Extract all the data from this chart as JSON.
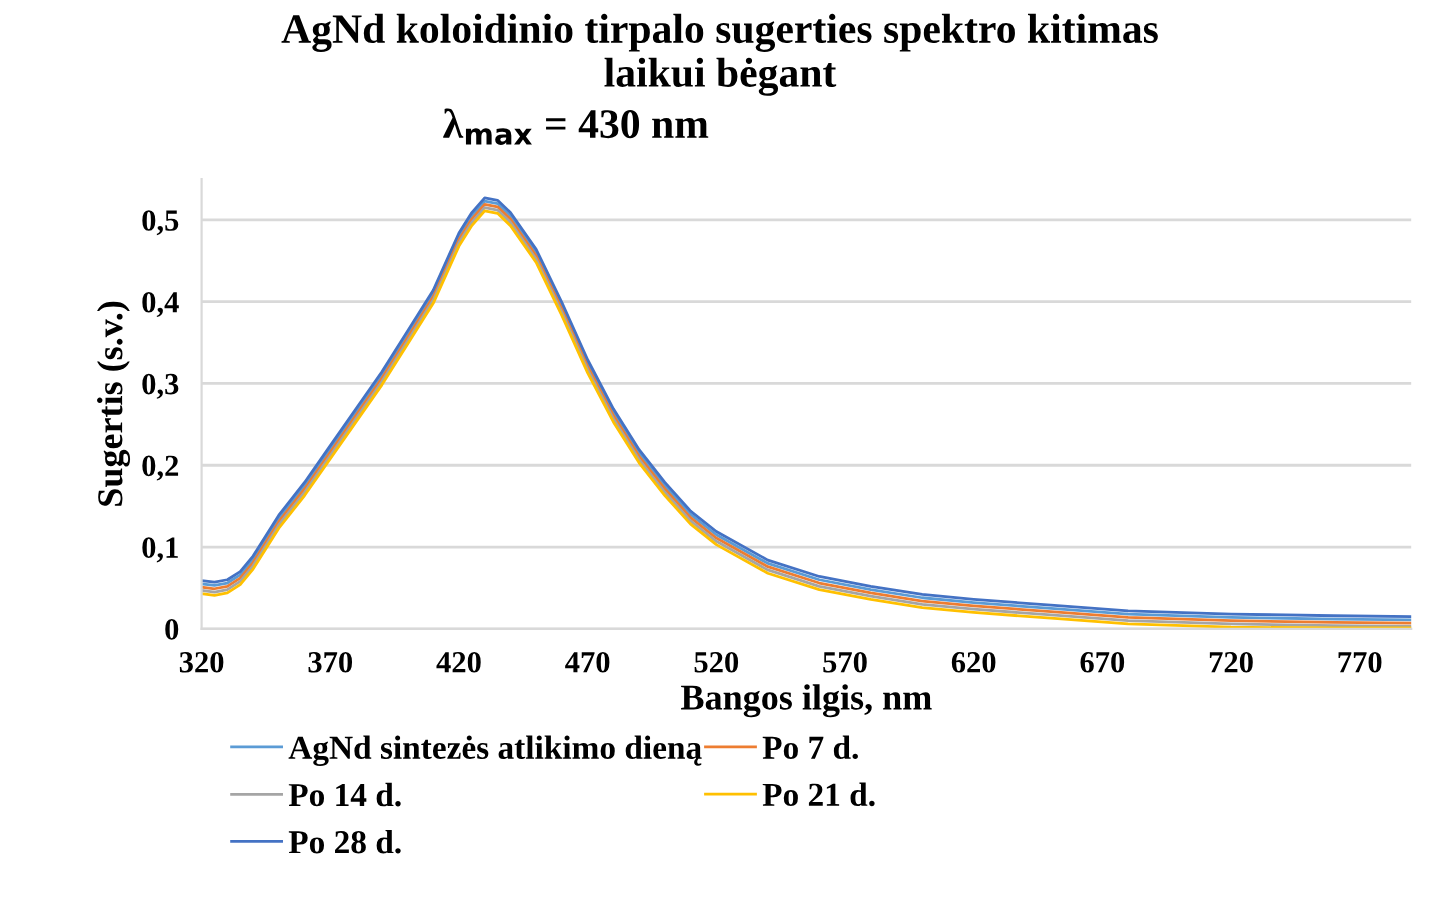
{
  "chart_data": {
    "type": "line",
    "title": "AgNd koloidinio tirpalo sugerties spektro kitimas\nlaikui bėgant",
    "subtitle": "λ$_{max}$ = 430 nm",
    "xlabel": "Bangos ilgis, nm",
    "ylabel": "Sugertis (s.v.)",
    "x": [
      320,
      325,
      330,
      335,
      340,
      350,
      360,
      370,
      380,
      390,
      400,
      410,
      420,
      425,
      430,
      435,
      440,
      450,
      460,
      470,
      480,
      490,
      500,
      510,
      520,
      540,
      560,
      580,
      600,
      620,
      650,
      680,
      720,
      760,
      790
    ],
    "series": [
      {
        "name": "AgNd sintezės atlikimo dieną",
        "color": "#5b9bd5",
        "values": [
          0.055,
          0.053,
          0.056,
          0.066,
          0.085,
          0.135,
          0.175,
          0.22,
          0.265,
          0.31,
          0.36,
          0.41,
          0.48,
          0.505,
          0.523,
          0.52,
          0.505,
          0.46,
          0.395,
          0.325,
          0.265,
          0.215,
          0.175,
          0.14,
          0.115,
          0.08,
          0.06,
          0.048,
          0.038,
          0.032,
          0.025,
          0.018,
          0.014,
          0.012,
          0.011
        ]
      },
      {
        "name": "Po 7 d.",
        "color": "#ed7d31",
        "values": [
          0.051,
          0.049,
          0.052,
          0.062,
          0.081,
          0.131,
          0.171,
          0.216,
          0.261,
          0.306,
          0.356,
          0.406,
          0.476,
          0.501,
          0.519,
          0.516,
          0.501,
          0.456,
          0.391,
          0.321,
          0.261,
          0.211,
          0.171,
          0.136,
          0.111,
          0.076,
          0.056,
          0.044,
          0.034,
          0.028,
          0.021,
          0.014,
          0.01,
          0.008,
          0.007
        ]
      },
      {
        "name": "Po 14 d.",
        "color": "#a5a5a5",
        "values": [
          0.047,
          0.045,
          0.048,
          0.058,
          0.077,
          0.127,
          0.167,
          0.212,
          0.257,
          0.302,
          0.352,
          0.402,
          0.472,
          0.497,
          0.515,
          0.512,
          0.497,
          0.452,
          0.387,
          0.317,
          0.257,
          0.207,
          0.167,
          0.132,
          0.107,
          0.072,
          0.052,
          0.04,
          0.03,
          0.024,
          0.017,
          0.01,
          0.006,
          0.004,
          0.003
        ]
      },
      {
        "name": "Po 21 d.",
        "color": "#ffc000",
        "values": [
          0.043,
          0.041,
          0.044,
          0.054,
          0.073,
          0.123,
          0.163,
          0.208,
          0.253,
          0.298,
          0.348,
          0.398,
          0.468,
          0.493,
          0.511,
          0.508,
          0.493,
          0.448,
          0.383,
          0.313,
          0.253,
          0.203,
          0.163,
          0.128,
          0.103,
          0.068,
          0.048,
          0.036,
          0.026,
          0.02,
          0.013,
          0.006,
          0.002,
          0.001,
          0.001
        ]
      },
      {
        "name": "Po 28 d.",
        "color": "#4472c4",
        "values": [
          0.059,
          0.057,
          0.06,
          0.07,
          0.089,
          0.139,
          0.179,
          0.224,
          0.269,
          0.314,
          0.364,
          0.414,
          0.484,
          0.509,
          0.527,
          0.524,
          0.509,
          0.464,
          0.399,
          0.329,
          0.269,
          0.219,
          0.179,
          0.144,
          0.119,
          0.084,
          0.064,
          0.052,
          0.042,
          0.036,
          0.029,
          0.022,
          0.018,
          0.016,
          0.015
        ]
      }
    ],
    "xlim": [
      320,
      790
    ],
    "xticks": [
      320,
      370,
      420,
      470,
      520,
      570,
      620,
      670,
      720,
      770
    ],
    "ylim": [
      0,
      0.55
    ],
    "yticks": [
      {
        "value": 0,
        "label": "0"
      },
      {
        "value": 0.1,
        "label": "0,1"
      },
      {
        "value": 0.2,
        "label": "0,2"
      },
      {
        "value": 0.3,
        "label": "0,3"
      },
      {
        "value": 0.4,
        "label": "0,4"
      },
      {
        "value": 0.5,
        "label": "0,5"
      }
    ],
    "grid": "y",
    "legend": "bottom",
    "marker": "none",
    "line_style": "solid"
  }
}
